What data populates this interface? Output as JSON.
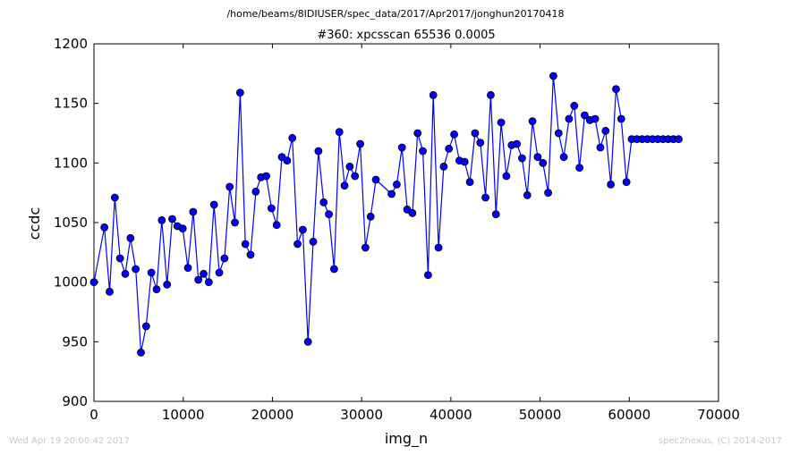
{
  "suptitle": "/home/beams/8IDIUSER/spec_data/2017/Apr2017/jonghun20170418",
  "footer": {
    "timestamp": "Wed Apr 19 20:00:42 2017",
    "credit": "spec2nexus, (C) 2014-2017"
  },
  "colors": {
    "series": "#0000ff",
    "axes": "#000000",
    "footer": "#c8c8c8"
  },
  "chart_data": {
    "type": "line",
    "title": "#360: xpcsscan 65536 0.0005",
    "xlabel": "img_n",
    "ylabel": "ccdc",
    "xlim": [
      0,
      70000
    ],
    "ylim": [
      900,
      1200
    ],
    "xticks": [
      0,
      10000,
      20000,
      30000,
      40000,
      50000,
      60000,
      70000
    ],
    "yticks": [
      900,
      950,
      1000,
      1050,
      1100,
      1150,
      1200
    ],
    "marker": "circle",
    "grid": false,
    "series": [
      {
        "x": [
          0,
          1170,
          1755,
          2340,
          2925,
          3510,
          4096,
          4681,
          5266,
          5851,
          6436,
          7021,
          7606,
          8191,
          8777,
          9362,
          9947,
          10532,
          11117,
          11702,
          12287,
          12872,
          13457,
          14043,
          14628,
          15213,
          15798,
          16383,
          16968,
          17553,
          18138,
          18724,
          19309,
          19894,
          20479,
          21064,
          21649,
          22234,
          22819,
          23405,
          23990,
          24575,
          25160,
          25745,
          26330,
          26915,
          27500,
          28086,
          28671,
          29256,
          29841,
          30426,
          31011,
          31596,
          33352,
          33937,
          34522,
          35107,
          35692,
          36277,
          36862,
          37447,
          38033,
          38618,
          39203,
          39788,
          40373,
          40958,
          41543,
          42128,
          42714,
          43299,
          43884,
          44469,
          45054,
          45639,
          46224,
          46809,
          47395,
          47980,
          48565,
          49150,
          49735,
          50320,
          50905,
          51490,
          52076,
          52661,
          53246,
          53831,
          54416,
          55001,
          55586,
          56171,
          56757,
          57342,
          57927,
          58512,
          59097,
          59682,
          60267,
          60852,
          61438,
          62023,
          62608,
          63193,
          63778,
          64363,
          64948,
          65533
        ],
        "y": [
          1000,
          1046,
          992,
          1071,
          1020,
          1007,
          1037,
          1011,
          941,
          963,
          1008,
          994,
          1052,
          998,
          1053,
          1047,
          1045,
          1012,
          1059,
          1002,
          1007,
          1000,
          1065,
          1008,
          1020,
          1080,
          1050,
          1159,
          1032,
          1023,
          1076,
          1088,
          1089,
          1062,
          1048,
          1105,
          1102,
          1121,
          1032,
          1044,
          950,
          1034,
          1110,
          1067,
          1057,
          1011,
          1126,
          1081,
          1097,
          1089,
          1116,
          1029,
          1055,
          1086,
          1074,
          1082,
          1113,
          1061,
          1058,
          1125,
          1110,
          1006,
          1157,
          1029,
          1097,
          1112,
          1124,
          1102,
          1101,
          1084,
          1125,
          1117,
          1071,
          1157,
          1057,
          1134,
          1089,
          1115,
          1116,
          1104,
          1073,
          1135,
          1105,
          1100,
          1075,
          1173,
          1125,
          1105,
          1137,
          1148,
          1096,
          1140,
          1136,
          1137,
          1113,
          1127,
          1082,
          1162,
          1137,
          1084,
          1120,
          1120,
          1120,
          1120,
          1120,
          1120,
          1120,
          1120,
          1120,
          1120
        ]
      }
    ]
  }
}
